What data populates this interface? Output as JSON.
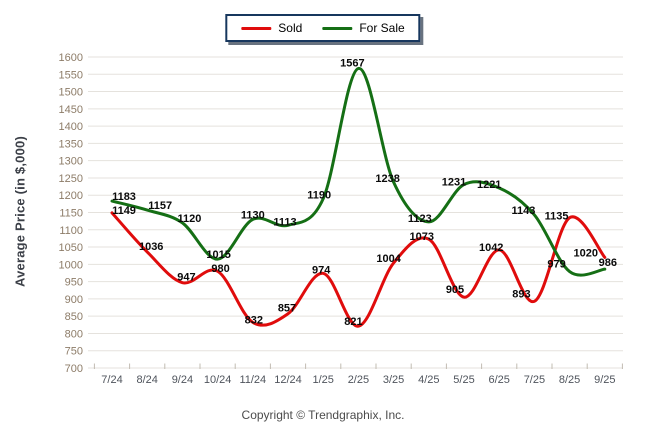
{
  "chart_data": {
    "type": "line",
    "title": "",
    "xlabel": "",
    "ylabel": "Average Price (in $,000)",
    "ylim": [
      700,
      1600
    ],
    "ystep": 50,
    "grid": "horizontal",
    "legend_position": "top-center",
    "categories": [
      "7/24",
      "8/24",
      "9/24",
      "10/24",
      "11/24",
      "12/24",
      "1/25",
      "2/25",
      "3/25",
      "4/25",
      "5/25",
      "6/25",
      "7/25",
      "8/25",
      "9/25"
    ],
    "series": [
      {
        "name": "Sold",
        "color": "#e00c0c",
        "values": [
          1149,
          1036,
          947,
          980,
          832,
          857,
          974,
          821,
          1004,
          1073,
          905,
          1042,
          893,
          1135,
          1020
        ],
        "label_offsets": [
          [
            12,
            5
          ],
          [
            4,
            2
          ],
          [
            4,
            2
          ],
          [
            3,
            5
          ],
          [
            1,
            5
          ],
          [
            -1,
            2
          ],
          [
            -2,
            4
          ],
          [
            -5,
            3
          ],
          [
            -5,
            3
          ],
          [
            -7,
            5
          ],
          [
            -9,
            0
          ],
          [
            -8,
            5
          ],
          [
            -13,
            0
          ],
          [
            -13,
            6
          ],
          [
            -19,
            3
          ]
        ]
      },
      {
        "name": "For Sale",
        "color": "#156f15",
        "values": [
          1183,
          1157,
          1120,
          1015,
          1130,
          1113,
          1190,
          1567,
          1238,
          1123,
          1231,
          1221,
          1143,
          979,
          986
        ],
        "label_offsets": [
          [
            12,
            3
          ],
          [
            13,
            3
          ],
          [
            7,
            3
          ],
          [
            1,
            3
          ],
          [
            0,
            3
          ],
          [
            -3,
            4
          ],
          [
            -4,
            4
          ],
          [
            -6,
            2
          ],
          [
            -6,
            4
          ],
          [
            -9,
            4
          ],
          [
            -10,
            5
          ],
          [
            -10,
            4
          ],
          [
            -11,
            3
          ],
          [
            -13,
            0
          ],
          [
            3,
            1
          ]
        ]
      }
    ]
  },
  "footer": {
    "copyright": "Copyright © Trendgraphix, Inc."
  },
  "colors": {
    "grid": "#e5e2dd",
    "axis_tick": "#c2bcb2",
    "y_tick_label": "#8d7c68",
    "x_tick_label": "#4f545c",
    "axis_title": "#3c4048",
    "data_label": "#0a0a0a",
    "legend_border": "#17375e",
    "legend_shadow": "#68727f",
    "background": "#ffffff"
  }
}
